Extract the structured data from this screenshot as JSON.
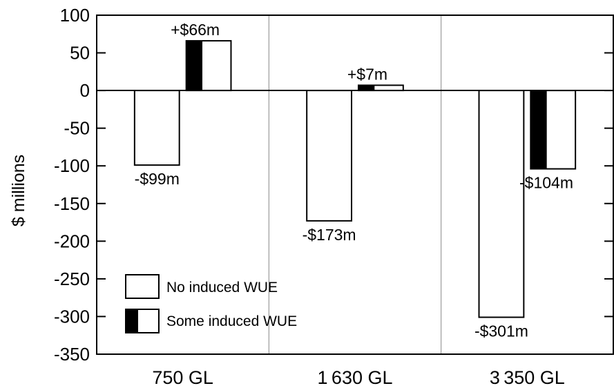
{
  "chart_data": {
    "type": "bar",
    "ylabel": "$ millions",
    "xlabel": "",
    "ylim": [
      -350,
      100
    ],
    "yticks": [
      100,
      50,
      0,
      -50,
      -100,
      -150,
      -200,
      -250,
      -300,
      -350
    ],
    "grid": false,
    "legend_position": "bottom-left",
    "categories": [
      "750 GL",
      "1 630 GL",
      "3 350 GL"
    ],
    "series": [
      {
        "name": "No induced WUE",
        "values": [
          -99,
          -173,
          -301
        ],
        "labels": [
          "-$99m",
          "-$173m",
          "-$301m"
        ],
        "style": "hollow"
      },
      {
        "name": "Some induced WUE",
        "values": [
          66,
          7,
          -104
        ],
        "labels": [
          "+$66m",
          "+$7m",
          "-$104m"
        ],
        "style": "half-black"
      }
    ],
    "colors": {
      "fill": "#000000",
      "stroke": "#000000",
      "divider": "#888888"
    }
  }
}
